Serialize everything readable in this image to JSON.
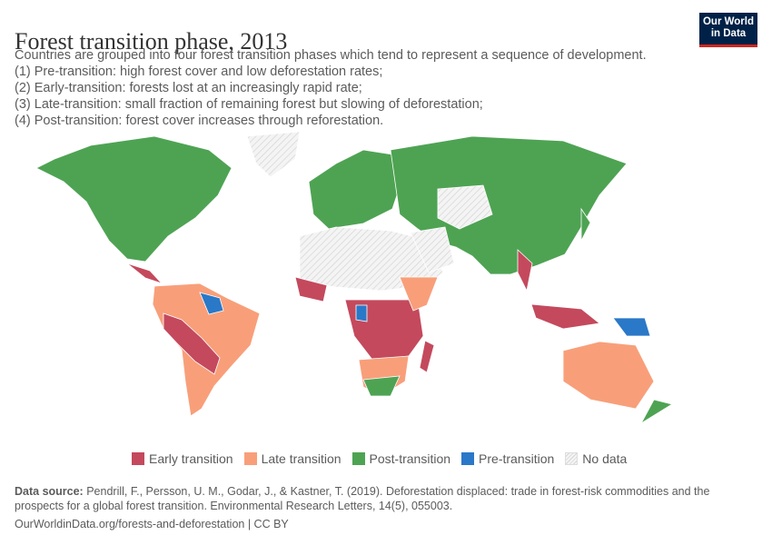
{
  "header": {
    "title": "Forest transition phase, 2013",
    "subtitle_lines": [
      "Countries are grouped into four forest transition phases which tend to represent a sequence of development.",
      "(1) Pre-transition: high forest cover and low deforestation rates;",
      "(2) Early-transition: forests lost at an increasingly rapid rate;",
      "(3) Late-transition: small fraction of remaining forest but slowing of deforestation;",
      "(4) Post-transition: forest cover increases through reforestation."
    ],
    "logo_line1": "Our World",
    "logo_line2": "in Data"
  },
  "colors": {
    "early": "#c4495d",
    "late": "#f89f7a",
    "post": "#4ea353",
    "pre": "#2a78c8",
    "nodata": "#eeeeee",
    "border": "#ffffff"
  },
  "legend": [
    {
      "key": "early",
      "label": "Early transition"
    },
    {
      "key": "late",
      "label": "Late transition"
    },
    {
      "key": "post",
      "label": "Post-transition"
    },
    {
      "key": "pre",
      "label": "Pre-transition"
    },
    {
      "key": "nodata",
      "label": "No data"
    }
  ],
  "footer": {
    "source_label": "Data source:",
    "source_text": "Pendrill, F., Persson, U. M., Godar, J., & Kastner, T. (2019). Deforestation displaced: trade in forest-risk commodities and the prospects for a global forest transition. Environmental Research Letters, 14(5), 055003.",
    "link": "OurWorldinData.org/forests-and-deforestation | CC BY"
  }
}
